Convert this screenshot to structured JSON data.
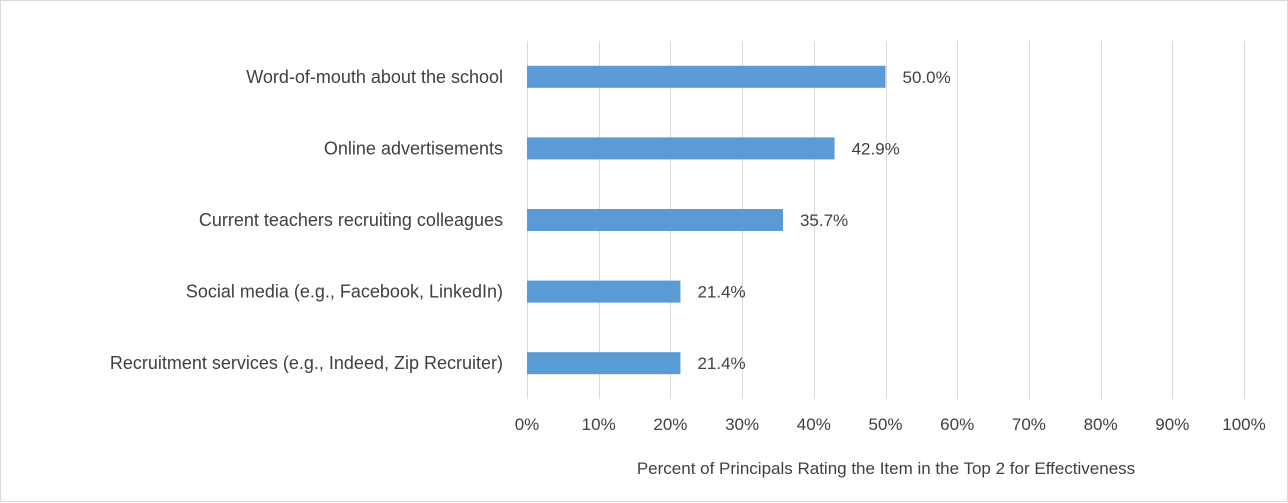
{
  "chart_data": {
    "type": "bar",
    "orientation": "horizontal",
    "categories": [
      "Word-of-mouth about the school",
      "Online advertisements",
      "Current teachers recruiting colleagues",
      "Social media (e.g., Facebook, LinkedIn)",
      "Recruitment services (e.g., Indeed, Zip Recruiter)"
    ],
    "values": [
      50.0,
      42.9,
      35.7,
      21.4,
      21.4
    ],
    "data_labels": [
      "50.0%",
      "42.9%",
      "35.7%",
      "21.4%",
      "21.4%"
    ],
    "xlabel": "Percent of Principals Rating the Item in the Top 2 for Effectiveness",
    "xlim": [
      0,
      100
    ],
    "xticks": [
      "0%",
      "10%",
      "20%",
      "30%",
      "40%",
      "50%",
      "60%",
      "70%",
      "80%",
      "90%",
      "100%"
    ],
    "grid": "vertical",
    "legend": "none",
    "bar_color": "#5b9bd5",
    "grid_color": "#d9d9d9"
  }
}
